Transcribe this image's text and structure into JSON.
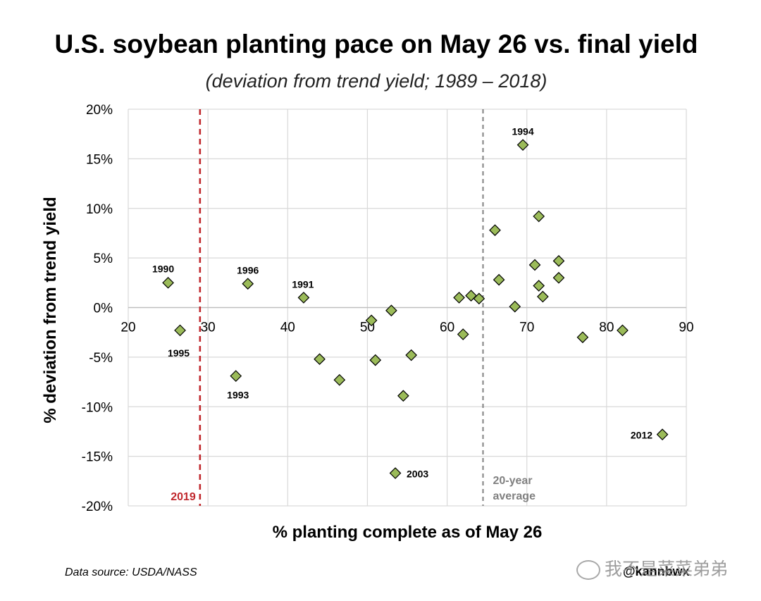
{
  "chart_data": {
    "type": "scatter",
    "title": "U.S. soybean planting pace on May 26 vs. final yield",
    "subtitle": "(deviation from trend yield; 1989 – 2018)",
    "xlabel": "% planting complete as of May 26",
    "ylabel": "% deviation from trend yield",
    "xlim": [
      20,
      90
    ],
    "ylim": [
      -20,
      20
    ],
    "x_ticks": [
      20,
      30,
      40,
      50,
      60,
      70,
      80,
      90
    ],
    "x_tick_labels": [
      "20",
      "30",
      "40",
      "50",
      "60",
      "70",
      "80",
      "90"
    ],
    "y_ticks": [
      20,
      15,
      10,
      5,
      0,
      -5,
      -10,
      -15,
      -20
    ],
    "y_tick_labels": [
      "20%",
      "15%",
      "10%",
      "5%",
      "0%",
      "-5%",
      "-10%",
      "-15%",
      "-20%"
    ],
    "grid": true,
    "marker_color": "#9bbb59",
    "marker_edge": "#000000",
    "points": [
      {
        "x": 25.0,
        "y": 2.5,
        "label": "1990"
      },
      {
        "x": 26.5,
        "y": -2.3,
        "label": "1995"
      },
      {
        "x": 33.5,
        "y": -6.9,
        "label": "1993"
      },
      {
        "x": 35.0,
        "y": 2.4,
        "label": "1996"
      },
      {
        "x": 42.0,
        "y": 1.0,
        "label": "1991"
      },
      {
        "x": 44.0,
        "y": -5.2,
        "label": ""
      },
      {
        "x": 46.5,
        "y": -7.3,
        "label": ""
      },
      {
        "x": 50.5,
        "y": -1.3,
        "label": ""
      },
      {
        "x": 51.0,
        "y": -5.3,
        "label": ""
      },
      {
        "x": 53.0,
        "y": -0.3,
        "label": ""
      },
      {
        "x": 53.5,
        "y": -16.7,
        "label": "2003"
      },
      {
        "x": 54.5,
        "y": -8.9,
        "label": ""
      },
      {
        "x": 55.5,
        "y": -4.8,
        "label": ""
      },
      {
        "x": 61.5,
        "y": 1.0,
        "label": ""
      },
      {
        "x": 62.0,
        "y": -2.7,
        "label": ""
      },
      {
        "x": 63.0,
        "y": 1.2,
        "label": ""
      },
      {
        "x": 64.0,
        "y": 0.9,
        "label": ""
      },
      {
        "x": 66.0,
        "y": 7.8,
        "label": ""
      },
      {
        "x": 66.5,
        "y": 2.8,
        "label": ""
      },
      {
        "x": 68.5,
        "y": 0.1,
        "label": ""
      },
      {
        "x": 69.5,
        "y": 16.4,
        "label": "1994"
      },
      {
        "x": 71.0,
        "y": 4.3,
        "label": ""
      },
      {
        "x": 71.5,
        "y": 9.2,
        "label": ""
      },
      {
        "x": 71.5,
        "y": 2.2,
        "label": ""
      },
      {
        "x": 72.0,
        "y": 1.1,
        "label": ""
      },
      {
        "x": 74.0,
        "y": 4.7,
        "label": ""
      },
      {
        "x": 74.0,
        "y": 3.0,
        "label": ""
      },
      {
        "x": 77.0,
        "y": -3.0,
        "label": ""
      },
      {
        "x": 82.0,
        "y": -2.3,
        "label": ""
      },
      {
        "x": 87.0,
        "y": -12.8,
        "label": "2012"
      }
    ],
    "reference_lines": [
      {
        "x": 29.0,
        "label": "2019",
        "color": "#c0282d",
        "style": "dashed"
      },
      {
        "x": 64.5,
        "label_line1": "20-year",
        "label_line2": "average",
        "color": "#808080",
        "style": "dashed"
      }
    ]
  },
  "footer": {
    "source": "Data source: USDA/NASS",
    "handle": "@kannbwx",
    "watermark": "我不是菜菜弟弟"
  }
}
